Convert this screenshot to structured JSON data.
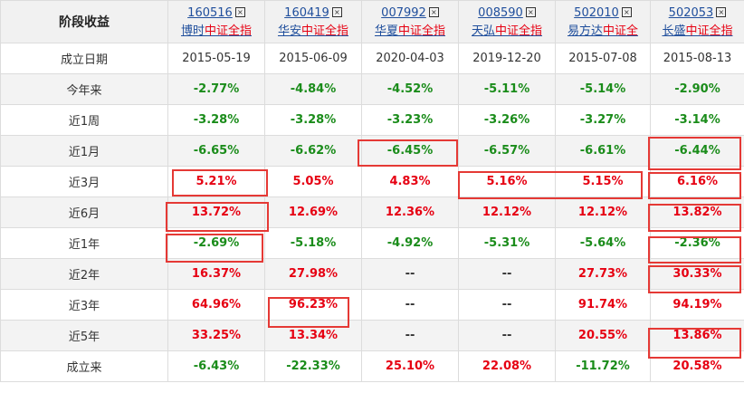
{
  "header": {
    "corner_label": "阶段收益",
    "funds": [
      {
        "code": "160516",
        "name_prefix": "博时",
        "name_highlight": "中证全指"
      },
      {
        "code": "160419",
        "name_prefix": "华安",
        "name_highlight": "中证全指"
      },
      {
        "code": "007992",
        "name_prefix": "华夏",
        "name_highlight": "中证全指"
      },
      {
        "code": "008590",
        "name_prefix": "天弘",
        "name_highlight": "中证全指"
      },
      {
        "code": "502010",
        "name_prefix": "易方达",
        "name_highlight": "中证全"
      },
      {
        "code": "502053",
        "name_prefix": "长盛",
        "name_highlight": "中证全指"
      }
    ],
    "remove_icon": "close-box-icon"
  },
  "inception_row": {
    "label": "成立日期",
    "values": [
      "2015-05-19",
      "2015-06-09",
      "2020-04-03",
      "2019-12-20",
      "2015-07-08",
      "2015-08-13"
    ]
  },
  "rows": [
    {
      "label": "今年来",
      "values": [
        "-2.77%",
        "-4.84%",
        "-4.52%",
        "-5.11%",
        "-5.14%",
        "-2.90%"
      ]
    },
    {
      "label": "近1周",
      "values": [
        "-3.28%",
        "-3.28%",
        "-3.23%",
        "-3.26%",
        "-3.27%",
        "-3.14%"
      ]
    },
    {
      "label": "近1月",
      "values": [
        "-6.65%",
        "-6.62%",
        "-6.45%",
        "-6.57%",
        "-6.61%",
        "-6.44%"
      ]
    },
    {
      "label": "近3月",
      "values": [
        "5.21%",
        "5.05%",
        "4.83%",
        "5.16%",
        "5.15%",
        "6.16%"
      ]
    },
    {
      "label": "近6月",
      "values": [
        "13.72%",
        "12.69%",
        "12.36%",
        "12.12%",
        "12.12%",
        "13.82%"
      ]
    },
    {
      "label": "近1年",
      "values": [
        "-2.69%",
        "-5.18%",
        "-4.92%",
        "-5.31%",
        "-5.64%",
        "-2.36%"
      ]
    },
    {
      "label": "近2年",
      "values": [
        "16.37%",
        "27.98%",
        "--",
        "--",
        "27.73%",
        "30.33%"
      ]
    },
    {
      "label": "近3年",
      "values": [
        "64.96%",
        "96.23%",
        "--",
        "--",
        "91.74%",
        "94.19%"
      ]
    },
    {
      "label": "近5年",
      "values": [
        "33.25%",
        "13.34%",
        "--",
        "--",
        "20.55%",
        "13.86%"
      ]
    },
    {
      "label": "成立来",
      "values": [
        "-6.43%",
        "-22.33%",
        "25.10%",
        "22.08%",
        "-11.72%",
        "20.58%"
      ]
    }
  ],
  "colors": {
    "positive": "#e60012",
    "negative": "#1a8c1a",
    "link": "#1f4e9c",
    "highlight_box": "#e53935"
  }
}
